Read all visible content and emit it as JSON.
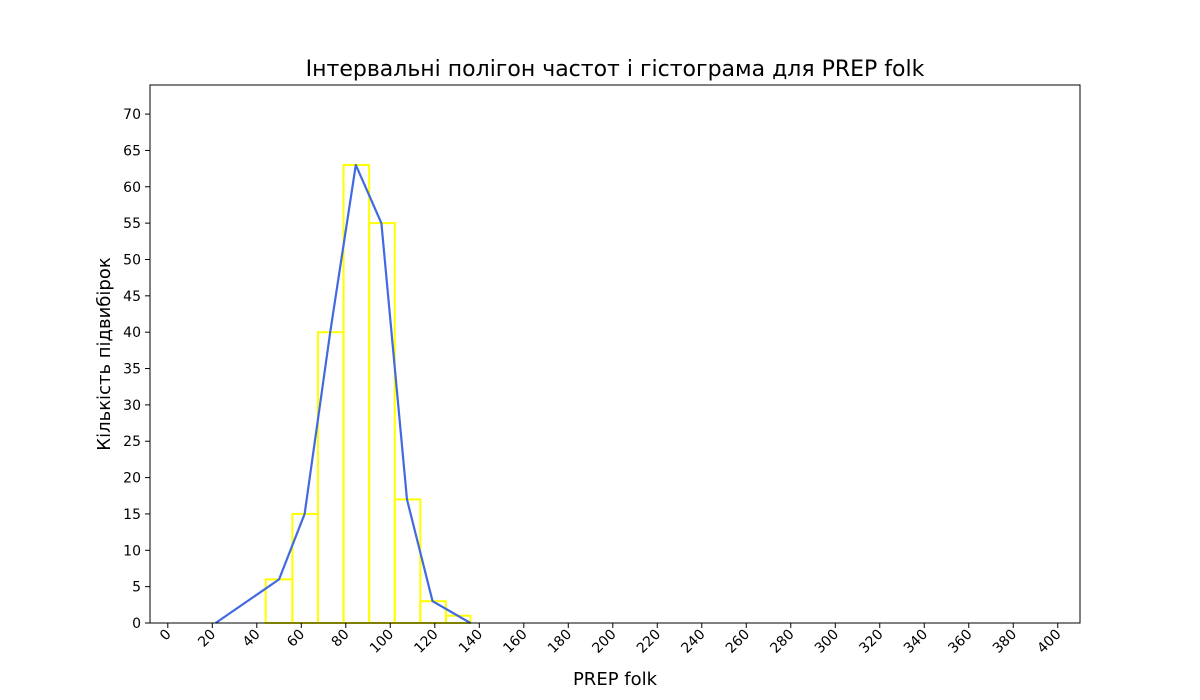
{
  "chart_data": {
    "type": "line",
    "title": "Інтервальні полігон частот і гістограма для PREP folk",
    "xlabel": "PREP folk",
    "ylabel": "Кількість підвибірок",
    "xlim": [
      -8,
      410
    ],
    "ylim": [
      0,
      74
    ],
    "x_ticks": [
      0,
      20,
      40,
      60,
      80,
      100,
      120,
      140,
      160,
      180,
      200,
      220,
      240,
      260,
      280,
      300,
      320,
      340,
      360,
      380,
      400
    ],
    "y_ticks": [
      0,
      5,
      10,
      15,
      20,
      25,
      30,
      35,
      40,
      45,
      50,
      55,
      60,
      65,
      70
    ],
    "grid": false,
    "histogram": {
      "color": "#ffff00",
      "bin_edges": [
        44,
        56,
        67.5,
        79,
        90.5,
        102,
        113.5,
        125,
        136
      ],
      "counts": [
        6,
        15,
        40,
        63,
        55,
        17,
        3,
        1
      ]
    },
    "polygon": {
      "color": "#4169e1",
      "x": [
        21.5,
        50,
        61.5,
        73,
        84.5,
        96,
        107.5,
        119,
        136
      ],
      "y": [
        0,
        6,
        15,
        40,
        63,
        55,
        17,
        3,
        0
      ]
    }
  }
}
